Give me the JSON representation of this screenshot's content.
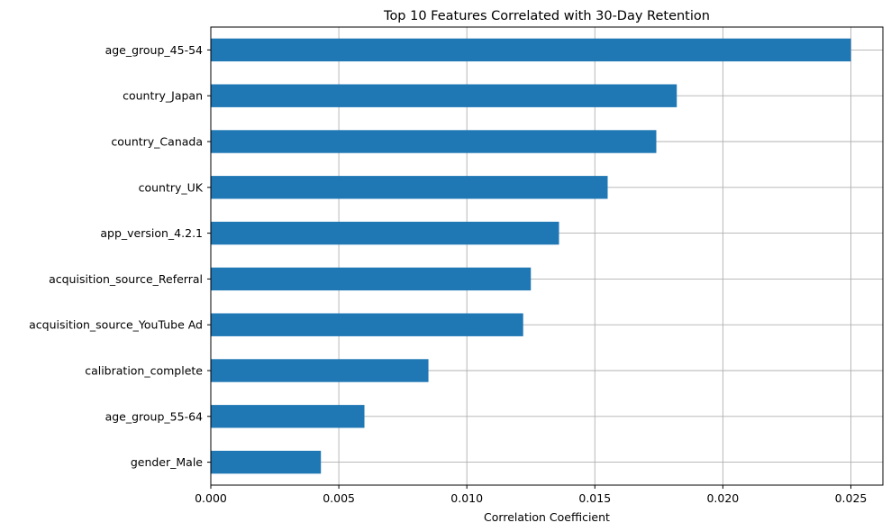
{
  "chart_data": {
    "type": "bar",
    "orientation": "horizontal",
    "title": "Top 10 Features Correlated with 30-Day Retention",
    "xlabel": "Correlation Coefficient",
    "ylabel": "",
    "categories": [
      "age_group_45-54",
      "country_Japan",
      "country_Canada",
      "country_UK",
      "app_version_4.2.1",
      "acquisition_source_Referral",
      "acquisition_source_YouTube Ad",
      "calibration_complete",
      "age_group_55-64",
      "gender_Male"
    ],
    "values": [
      0.025,
      0.0182,
      0.0174,
      0.0155,
      0.0136,
      0.0125,
      0.0122,
      0.0085,
      0.006,
      0.0043
    ],
    "xlim": [
      0,
      0.02625
    ],
    "xticks": [
      "0.000",
      "0.005",
      "0.010",
      "0.015",
      "0.020",
      "0.025"
    ],
    "xtick_values": [
      0,
      0.005,
      0.01,
      0.015,
      0.02,
      0.025
    ],
    "grid": true,
    "bar_color": "#1f77b4",
    "grid_color": "#b0b0b0"
  }
}
